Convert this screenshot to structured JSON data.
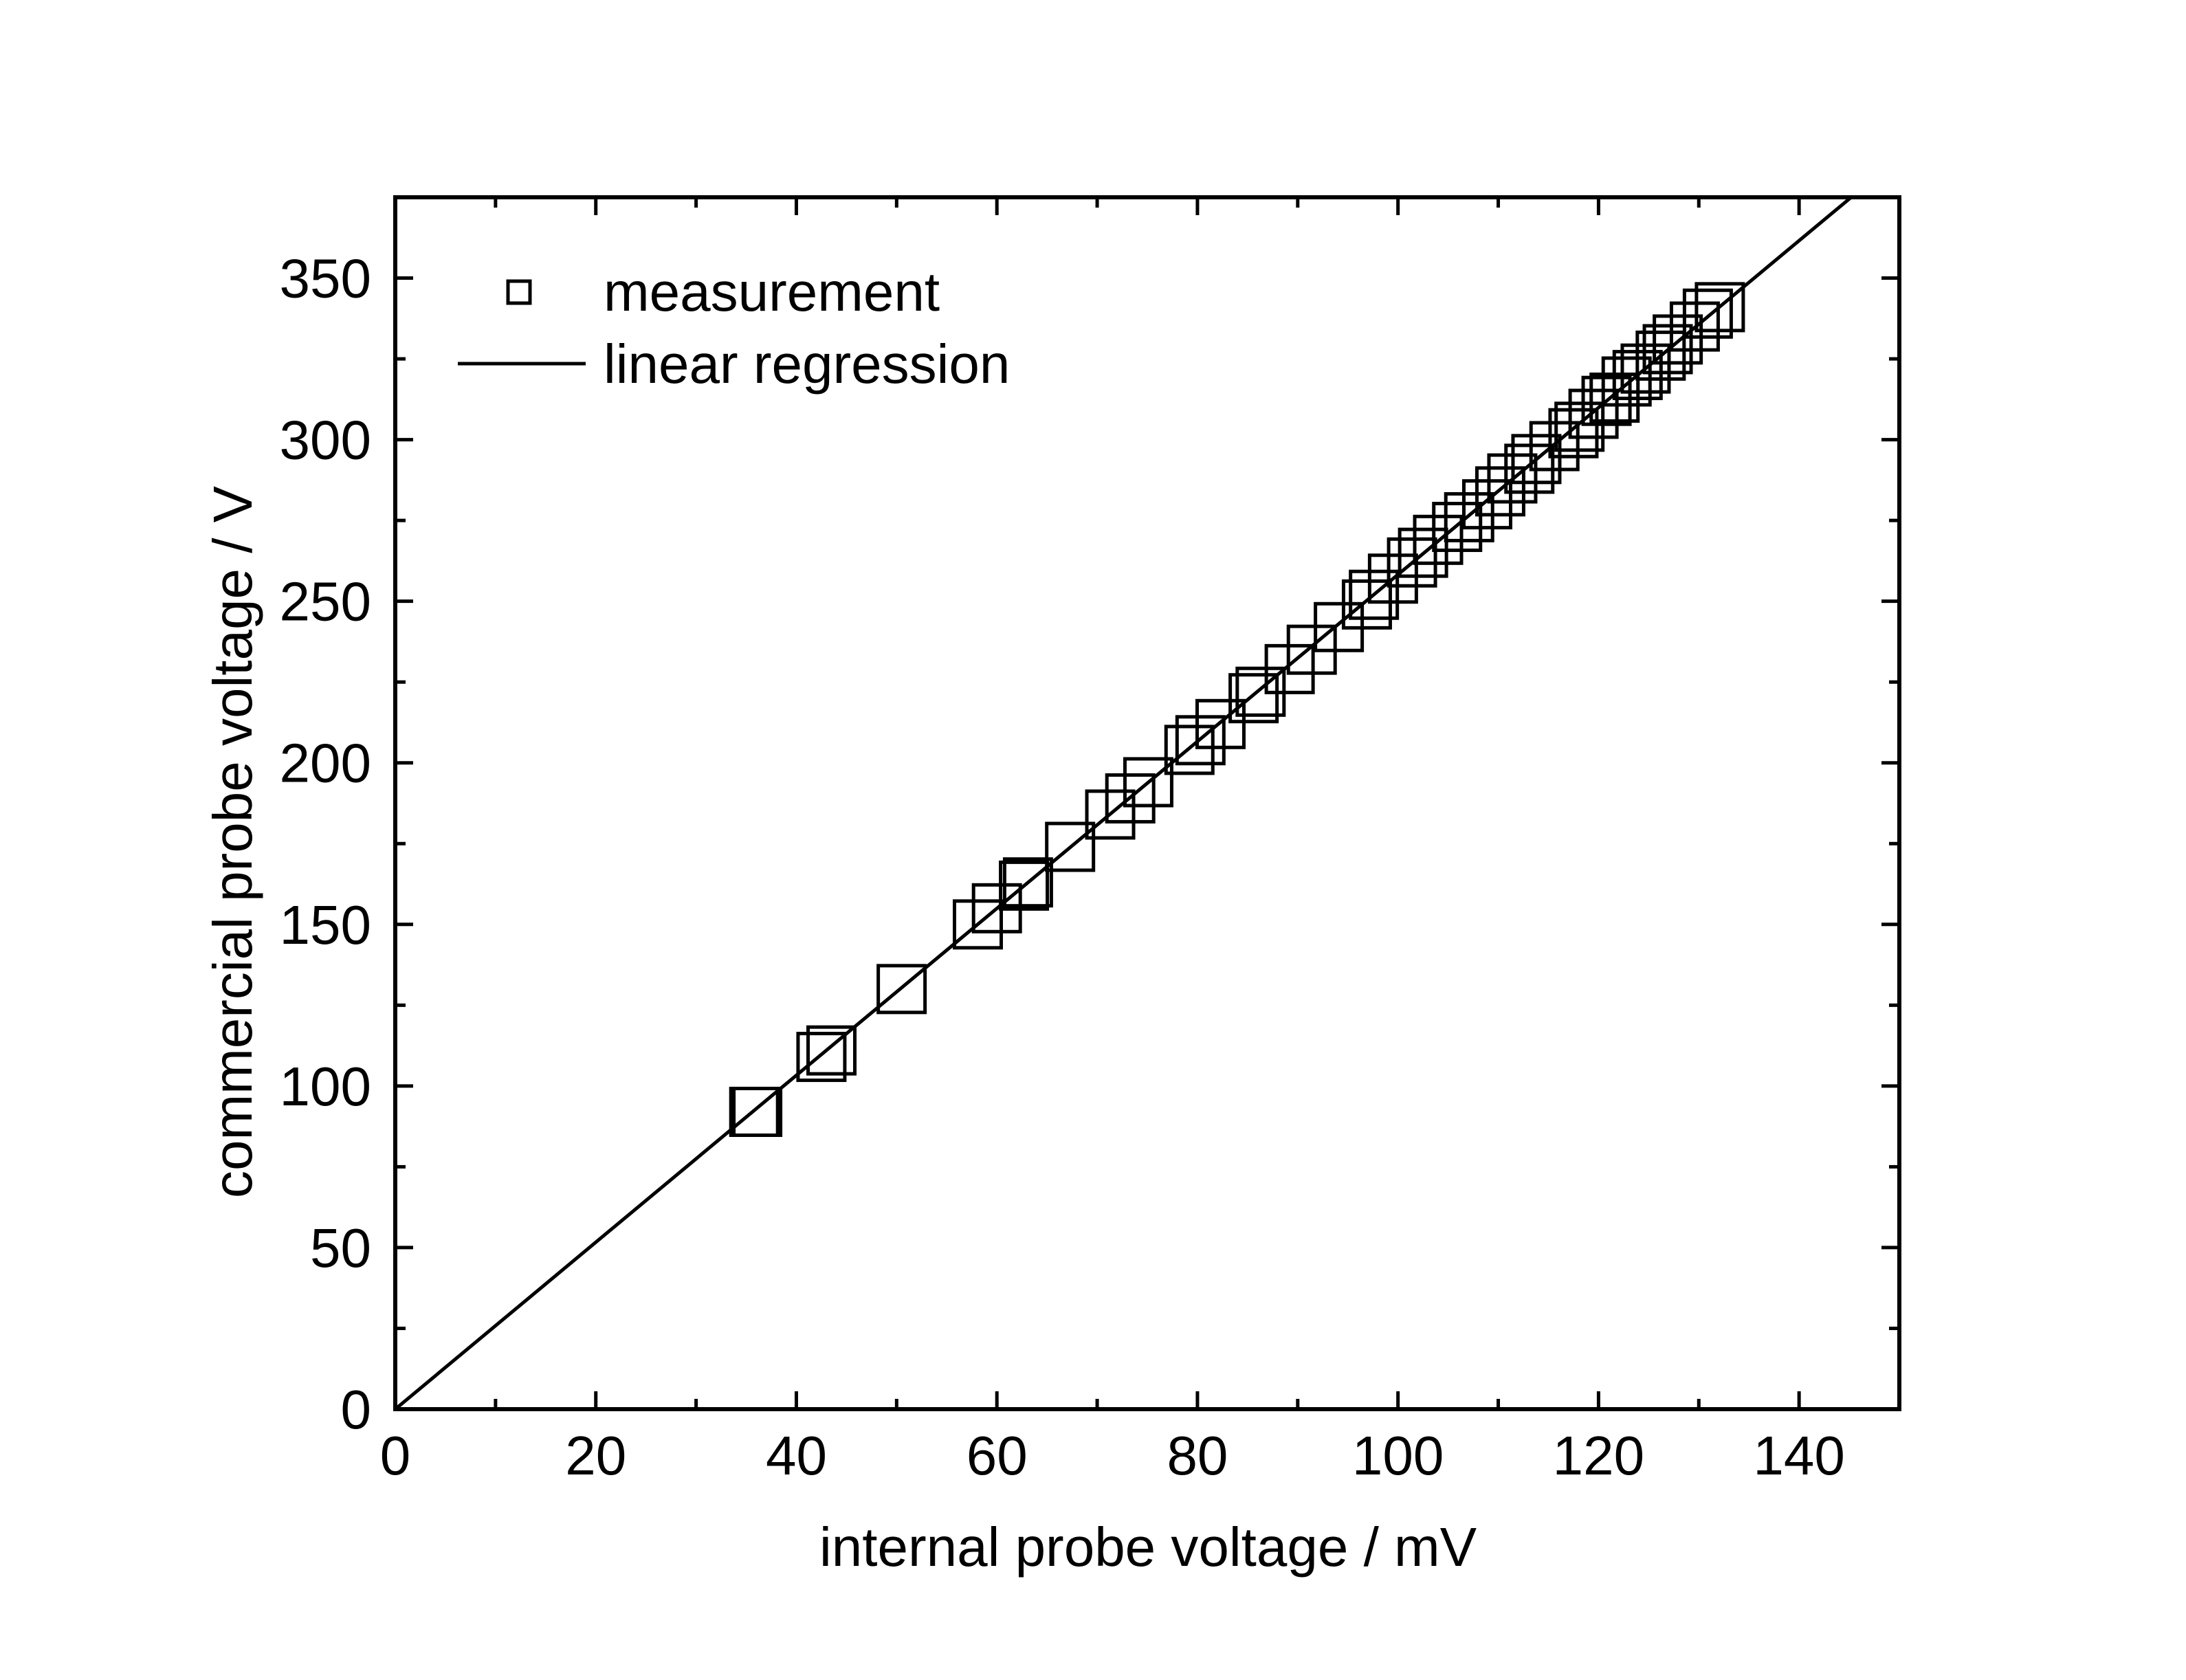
{
  "chart_data": {
    "type": "scatter",
    "xlabel": "internal probe voltage / mV",
    "ylabel": "commercial probe voltage / V",
    "xlim": [
      0,
      150
    ],
    "ylim": [
      0,
      375
    ],
    "x_ticks": [
      0,
      20,
      40,
      60,
      80,
      100,
      120,
      140
    ],
    "y_ticks": [
      0,
      50,
      100,
      150,
      200,
      250,
      300,
      350
    ],
    "x_tick_labels": [
      "0",
      "20",
      "40",
      "60",
      "80",
      "100",
      "120",
      "140"
    ],
    "y_tick_labels": [
      "0",
      "50",
      "100",
      "150",
      "200",
      "250",
      "300",
      "350"
    ],
    "x_minor_step": 10,
    "y_minor_step": 25,
    "grid": false,
    "legend_position": "top-left",
    "series": [
      {
        "name": "measurement",
        "type": "scatter",
        "marker": "open-square",
        "x": [
          35.8,
          36.1,
          42.5,
          43.5,
          50.5,
          58.1,
          60.0,
          62.7,
          63.1,
          67.3,
          71.3,
          73.3,
          75.1,
          79.2,
          80.3,
          82.3,
          85.6,
          86.3,
          89.2,
          91.4,
          94.1,
          96.9,
          97.6,
          99.5,
          101.4,
          102.5,
          104.0,
          105.9,
          107.1,
          108.9,
          110.2,
          111.4,
          113.1,
          113.8,
          115.6,
          117.5,
          118.1,
          119.5,
          120.8,
          121.6,
          122.8,
          123.9,
          124.7,
          126.2,
          126.9,
          127.9,
          129.6,
          130.9,
          132.1
        ],
        "y": [
          92,
          92,
          109,
          111,
          130,
          150,
          155,
          162,
          163,
          174,
          184,
          189,
          194,
          204,
          207,
          212,
          220,
          222,
          229,
          235,
          242,
          249,
          252,
          257,
          262,
          265,
          269,
          273,
          276,
          280,
          284,
          288,
          291,
          294,
          298,
          302,
          304,
          308,
          312,
          313,
          318,
          320,
          322,
          326,
          328,
          331,
          335,
          339,
          341
        ]
      },
      {
        "name": "linear regression",
        "type": "line",
        "x": [
          0,
          145.2
        ],
        "y": [
          0,
          375
        ]
      }
    ]
  }
}
